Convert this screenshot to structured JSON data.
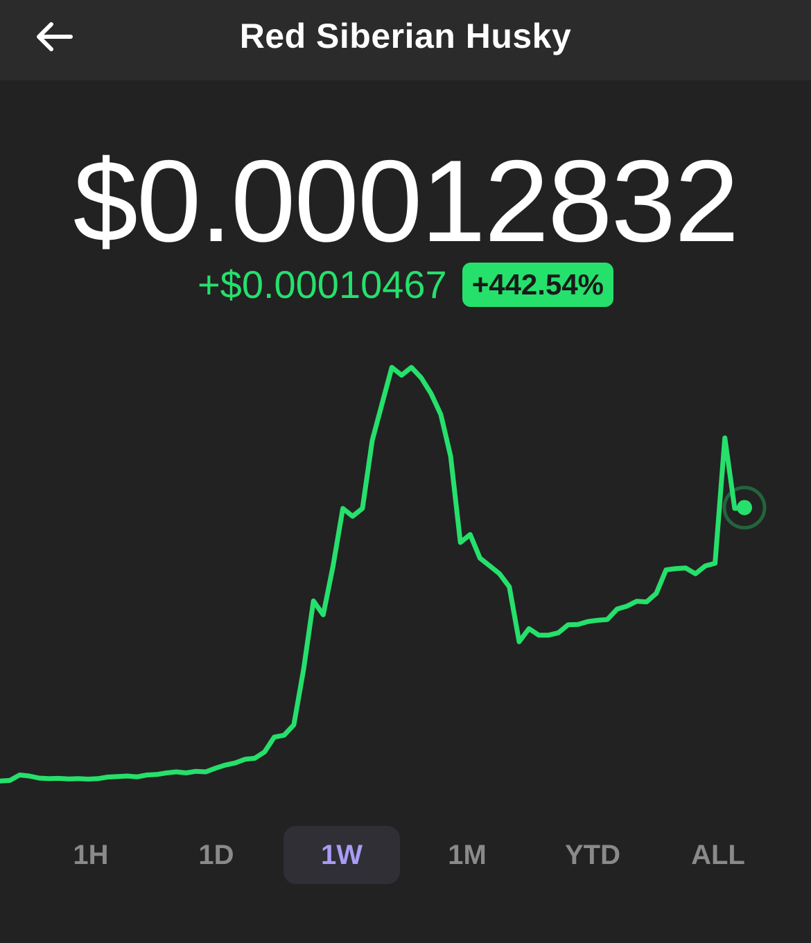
{
  "header": {
    "title": "Red Siberian Husky",
    "back_icon": "arrow-left-icon"
  },
  "quote": {
    "price": "$0.00012832",
    "change": "+$0.00010467",
    "change_pct": "+442.54%"
  },
  "colors": {
    "background": "#222222",
    "header_bg": "#2b2b2b",
    "accent_green": "#26e06c",
    "active_range_text": "#a89cf5",
    "active_range_bg": "#2f2f35",
    "inactive_range_text": "#8a8a8a"
  },
  "ranges": [
    {
      "label": "1H",
      "active": false
    },
    {
      "label": "1D",
      "active": false
    },
    {
      "label": "1W",
      "active": true
    },
    {
      "label": "1M",
      "active": false
    },
    {
      "label": "YTD",
      "active": false
    },
    {
      "label": "ALL",
      "active": false
    }
  ],
  "chart_data": {
    "type": "line",
    "title": "",
    "xlabel": "",
    "ylabel": "",
    "grid": false,
    "legend": "none",
    "ylim": [
      1.5e-05,
      0.00019
    ],
    "values": [
      2.37e-05,
      2.39e-05,
      2.6e-05,
      2.56e-05,
      2.48e-05,
      2.46e-05,
      2.47e-05,
      2.45e-05,
      2.46e-05,
      2.44e-05,
      2.46e-05,
      2.52e-05,
      2.54e-05,
      2.56e-05,
      2.53e-05,
      2.6e-05,
      2.62e-05,
      2.68e-05,
      2.72e-05,
      2.68e-05,
      2.74e-05,
      2.72e-05,
      2.86e-05,
      2.98e-05,
      3.06e-05,
      3.2e-05,
      3.24e-05,
      3.48e-05,
      4.05e-05,
      4.12e-05,
      4.52e-05,
      6.66e-05,
      9.26e-05,
      8.73e-05,
      0.000106,
      0.000128,
      0.000125,
      0.000128,
      0.000154,
      0.000168,
      0.000182,
      0.000179,
      0.000182,
      0.000178,
      0.000172,
      0.000164,
      0.000148,
      0.000115,
      0.000118,
      0.000109,
      0.000106,
      0.000103,
      9.8e-05,
      7.7e-05,
      8.2e-05,
      7.95e-05,
      7.95e-05,
      8.04e-05,
      8.35e-05,
      8.36e-05,
      8.47e-05,
      8.52e-05,
      8.55e-05,
      8.95e-05,
      9.06e-05,
      9.25e-05,
      9.22e-05,
      9.55e-05,
      0.0001045,
      0.000105,
      0.0001052,
      0.000103,
      0.000106,
      0.000107,
      0.000155,
      0.000128,
      0.00012832
    ]
  }
}
